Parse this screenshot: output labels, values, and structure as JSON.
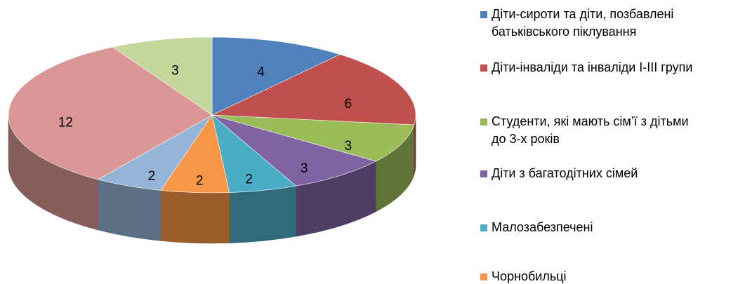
{
  "chart_data": {
    "type": "pie",
    "style": "3d",
    "title": "",
    "legend_position": "right",
    "categories": [
      "Діти-сироти та діти, позбавлені батьківського піклування",
      "Діти-інваліди та інваліди І-ІІІ групи",
      "Студенти, які мають сім’ї з дітьми до 3-х років",
      "Діти з багатодітних сімей",
      "Малозабезпечені",
      "Чорнобильці",
      "",
      "",
      ""
    ],
    "values": [
      4,
      6,
      3,
      3,
      2,
      2,
      2,
      12,
      3
    ],
    "colors": [
      "#4F81BD",
      "#C0504D",
      "#9BBB59",
      "#8064A2",
      "#4BACC6",
      "#F79646",
      "#95B3D7",
      "#D99694",
      "#C3D69B"
    ],
    "legend_entries": [
      {
        "label": "Діти-сироти та діти, позбавлені",
        "label_line2": "батьківського піклування",
        "color": "#4F81BD"
      },
      {
        "label": "Діти-інваліди та інваліди І-ІІІ групи",
        "label_line2": "",
        "color": "#C0504D"
      },
      {
        "label": "Студенти, які мають сім’ї з дітьми",
        "label_line2": "до 3-х років",
        "color": "#9BBB59"
      },
      {
        "label": "Діти з багатодітних сімей",
        "label_line2": "",
        "color": "#8064A2"
      },
      {
        "label": "Малозабезпечені",
        "label_line2": "",
        "color": "#4BACC6"
      },
      {
        "label": "Чорнобильці",
        "label_line2": "",
        "color": "#F79646"
      }
    ]
  }
}
